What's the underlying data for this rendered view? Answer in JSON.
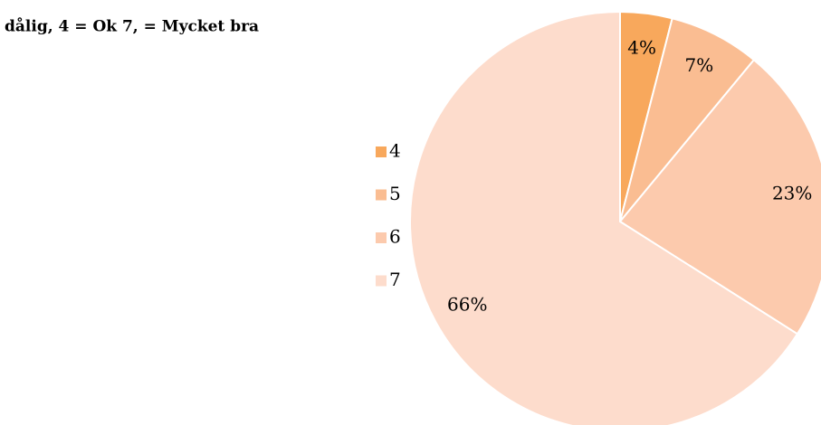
{
  "chart_data": {
    "type": "pie",
    "subtitle": "dålig, 4 = Ok 7, = Mycket bra",
    "categories": [
      "4",
      "5",
      "6",
      "7"
    ],
    "values": [
      4,
      7,
      23,
      66
    ],
    "value_labels": [
      "4%",
      "7%",
      "23%",
      "66%"
    ],
    "colors": [
      "#f8a85c",
      "#fabd92",
      "#fccaad",
      "#fddccc"
    ],
    "legend": "left"
  }
}
